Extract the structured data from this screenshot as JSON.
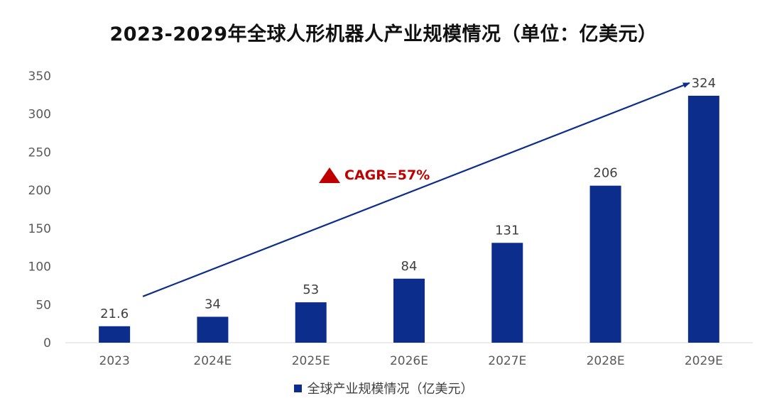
{
  "title": "2023-2029年全球人形机器人产业规模情况（单位：亿美元）",
  "annotation": {
    "text": "CAGR=57%",
    "marker_icon": "red-triangle-icon",
    "color": "#c00000"
  },
  "legend": {
    "label": "全球产业规模情况（亿美元）",
    "swatch_color": "#0d2d8c"
  },
  "chart_data": {
    "type": "bar",
    "title": "2023-2029年全球人形机器人产业规模情况（单位：亿美元）",
    "categories": [
      "2023",
      "2024E",
      "2025E",
      "2026E",
      "2027E",
      "2028E",
      "2029E"
    ],
    "series": [
      {
        "name": "全球产业规模情况（亿美元）",
        "values": [
          21.6,
          34,
          53,
          84,
          131,
          206,
          324
        ],
        "color": "#0d2d8c"
      }
    ],
    "data_labels": [
      "21.6",
      "34",
      "53",
      "84",
      "131",
      "206",
      "324"
    ],
    "ylim": [
      0,
      350
    ],
    "yticks": [
      0,
      50,
      100,
      150,
      200,
      250,
      300,
      350
    ],
    "grid": false,
    "legend_position": "bottom",
    "trend_arrow": {
      "from_category": "2023",
      "to_category": "2029E",
      "color": "#0d2d8c"
    }
  }
}
